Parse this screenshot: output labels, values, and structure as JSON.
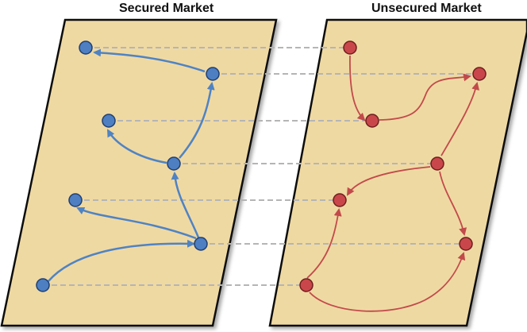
{
  "panels": {
    "secured": {
      "title": "Secured Market",
      "fill": "#EFD9A3",
      "node_color": "#4D7FC2",
      "edge_color": "#4F83C3"
    },
    "unsecured": {
      "title": "Unsecured Market",
      "fill": "#EFD9A3",
      "node_color": "#C9474A",
      "edge_color": "#C24A4A"
    }
  },
  "link_color": "#B5B5B5"
}
